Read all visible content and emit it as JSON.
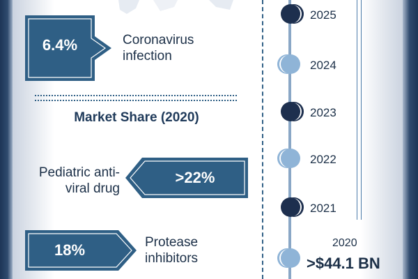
{
  "stats": {
    "coronavirus": {
      "value": "6.4%",
      "label_line1": "Coronavirus",
      "label_line2": "infection"
    }
  },
  "market_share": {
    "title": "Market Share (2020)",
    "items": [
      {
        "value": ">22%",
        "label_line1": "Pediatric anti-",
        "label_line2": "viral drug"
      },
      {
        "value": "18%",
        "label_line1": "Protease",
        "label_line2": "inhibitors"
      }
    ]
  },
  "timeline": {
    "years": [
      {
        "year": "2025",
        "style": "dark"
      },
      {
        "year": "2024",
        "style": "light"
      },
      {
        "year": "2023",
        "style": "dark"
      },
      {
        "year": "2022",
        "style": "light"
      },
      {
        "year": "2021",
        "style": "dark"
      },
      {
        "year": "2020",
        "style": "light"
      }
    ],
    "base_year": "2020",
    "base_value": ">$44.1 BN"
  },
  "colors": {
    "navy": "#1d3557",
    "card": "#2f5f85",
    "light_node": "#8fb4d7",
    "dark_node": "#1d2f4e"
  }
}
